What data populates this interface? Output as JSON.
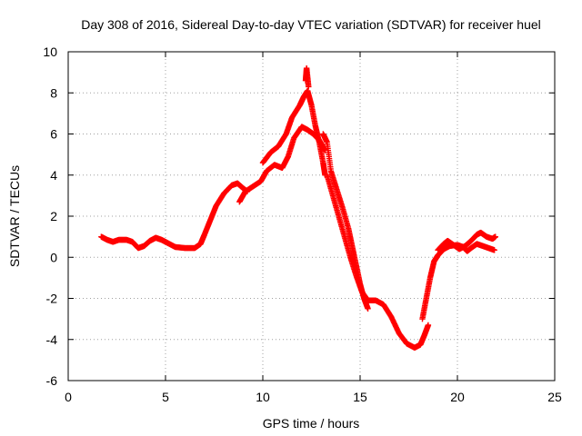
{
  "chart_data": {
    "type": "scatter",
    "title": "Day 308 of 2016, Sidereal Day-to-day VTEC variation (SDTVAR) for receiver huel",
    "xlabel": "GPS time / hours",
    "ylabel": "SDTVAR / TECUs",
    "xlim": [
      0,
      25
    ],
    "ylim": [
      -6,
      10
    ],
    "xticks": [
      0,
      5,
      10,
      15,
      20,
      25
    ],
    "yticks": [
      -6,
      -4,
      -2,
      0,
      2,
      4,
      6,
      8,
      10
    ],
    "grid": true,
    "marker": "plus",
    "series": [
      {
        "name": "SDTVAR",
        "color": "#ff0000",
        "points": [
          [
            1.7,
            1.0
          ],
          [
            2.0,
            0.85
          ],
          [
            2.3,
            0.75
          ],
          [
            2.6,
            0.85
          ],
          [
            3.0,
            0.85
          ],
          [
            3.3,
            0.75
          ],
          [
            3.6,
            0.45
          ],
          [
            3.9,
            0.55
          ],
          [
            4.2,
            0.8
          ],
          [
            4.5,
            0.95
          ],
          [
            4.8,
            0.85
          ],
          [
            5.1,
            0.7
          ],
          [
            5.5,
            0.5
          ],
          [
            6.0,
            0.45
          ],
          [
            6.5,
            0.45
          ],
          [
            6.8,
            0.65
          ],
          [
            7.0,
            1.1
          ],
          [
            7.3,
            1.8
          ],
          [
            7.6,
            2.5
          ],
          [
            8.0,
            3.1
          ],
          [
            8.4,
            3.5
          ],
          [
            8.7,
            3.6
          ],
          [
            9.0,
            3.35
          ],
          [
            9.2,
            3.2
          ],
          [
            8.8,
            2.7
          ],
          [
            9.1,
            3.2
          ],
          [
            9.5,
            3.45
          ],
          [
            9.9,
            3.7
          ],
          [
            10.2,
            4.2
          ],
          [
            10.6,
            4.5
          ],
          [
            11.0,
            4.35
          ],
          [
            11.3,
            4.9
          ],
          [
            11.6,
            5.8
          ],
          [
            12.0,
            6.35
          ],
          [
            12.3,
            6.2
          ],
          [
            12.6,
            6.0
          ],
          [
            12.9,
            5.7
          ],
          [
            13.2,
            5.2
          ],
          [
            10.0,
            4.6
          ],
          [
            10.4,
            5.1
          ],
          [
            10.8,
            5.4
          ],
          [
            11.2,
            6.0
          ],
          [
            11.5,
            6.8
          ],
          [
            11.9,
            7.4
          ],
          [
            12.1,
            7.8
          ],
          [
            12.3,
            8.1
          ],
          [
            12.5,
            7.4
          ],
          [
            12.7,
            6.4
          ],
          [
            12.9,
            5.6
          ],
          [
            13.1,
            4.6
          ],
          [
            13.2,
            4.0
          ],
          [
            12.2,
            8.6
          ],
          [
            12.25,
            9.2
          ],
          [
            12.35,
            8.3
          ],
          [
            13.1,
            6.0
          ],
          [
            13.3,
            5.6
          ],
          [
            13.5,
            4.2
          ],
          [
            13.8,
            3.3
          ],
          [
            14.1,
            2.4
          ],
          [
            14.4,
            1.4
          ],
          [
            14.6,
            0.5
          ],
          [
            14.8,
            -0.4
          ],
          [
            15.0,
            -1.3
          ],
          [
            15.2,
            -2.0
          ],
          [
            15.4,
            -2.5
          ],
          [
            13.3,
            4.0
          ],
          [
            13.6,
            3.0
          ],
          [
            13.9,
            2.0
          ],
          [
            14.2,
            1.0
          ],
          [
            14.5,
            0.0
          ],
          [
            14.8,
            -0.9
          ],
          [
            15.1,
            -1.7
          ],
          [
            15.4,
            -2.1
          ],
          [
            15.8,
            -2.1
          ],
          [
            16.2,
            -2.3
          ],
          [
            16.6,
            -2.9
          ],
          [
            17.0,
            -3.7
          ],
          [
            17.4,
            -4.2
          ],
          [
            17.8,
            -4.4
          ],
          [
            18.1,
            -4.25
          ],
          [
            18.3,
            -3.8
          ],
          [
            18.5,
            -3.3
          ],
          [
            18.2,
            -3.0
          ],
          [
            18.4,
            -2.0
          ],
          [
            18.6,
            -1.0
          ],
          [
            18.8,
            -0.2
          ],
          [
            19.0,
            0.1
          ],
          [
            19.3,
            0.4
          ],
          [
            19.6,
            0.55
          ],
          [
            20.0,
            0.6
          ],
          [
            20.3,
            0.5
          ],
          [
            20.5,
            0.3
          ],
          [
            20.7,
            0.45
          ],
          [
            21.0,
            0.65
          ],
          [
            21.3,
            0.55
          ],
          [
            21.6,
            0.45
          ],
          [
            21.9,
            0.35
          ],
          [
            19.0,
            0.35
          ],
          [
            19.3,
            0.65
          ],
          [
            19.5,
            0.8
          ],
          [
            19.8,
            0.6
          ],
          [
            20.1,
            0.4
          ],
          [
            20.4,
            0.55
          ],
          [
            20.7,
            0.8
          ],
          [
            21.0,
            1.1
          ],
          [
            21.2,
            1.2
          ],
          [
            21.5,
            1.0
          ],
          [
            21.8,
            0.9
          ],
          [
            21.95,
            1.0
          ]
        ]
      }
    ]
  }
}
